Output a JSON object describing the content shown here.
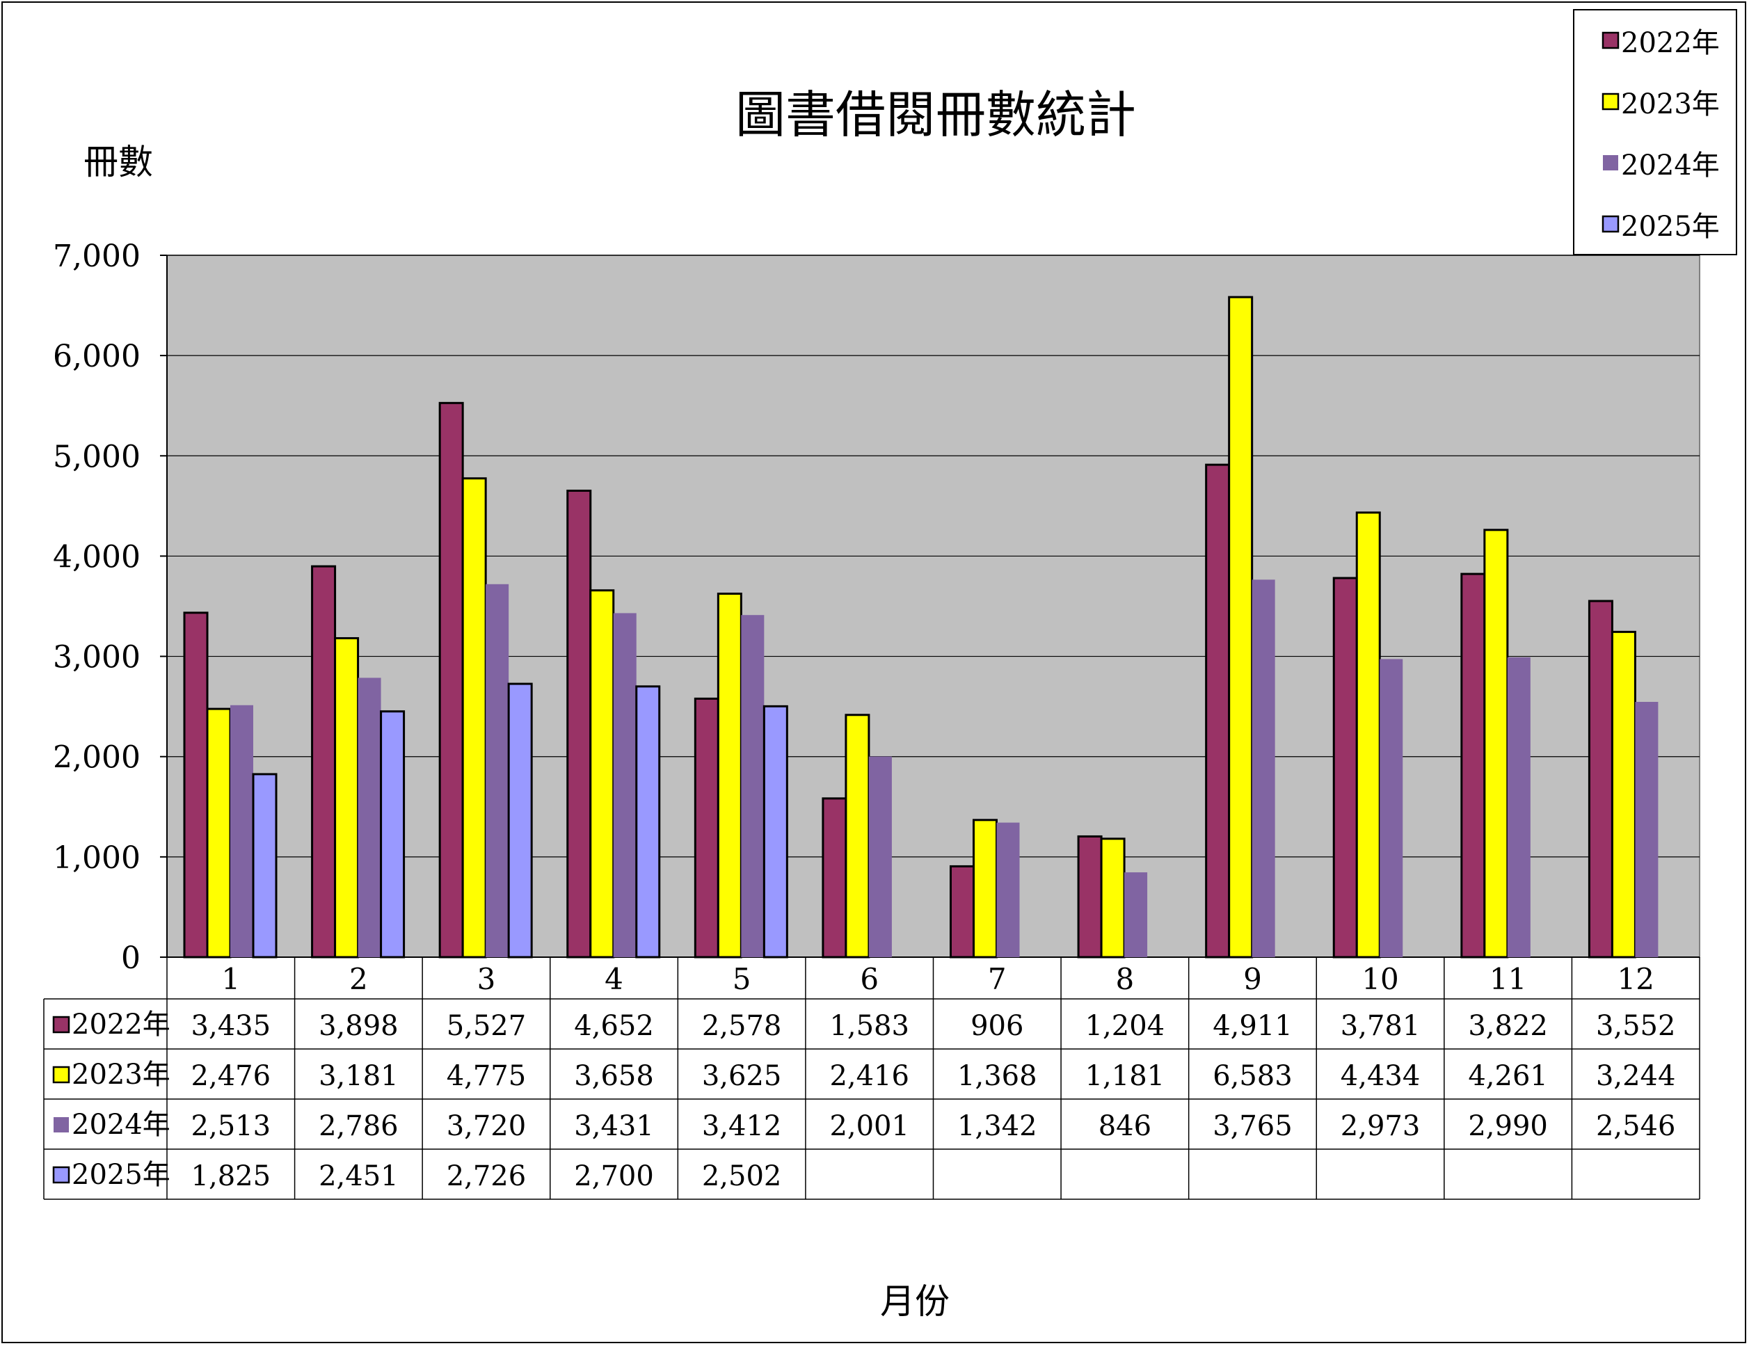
{
  "chart_data": {
    "type": "bar",
    "title": "圖書借閱冊數統計",
    "ylabel": "冊數",
    "xlabel": "月份",
    "ylim": [
      0,
      7000
    ],
    "yticks": [
      "0",
      "1,000",
      "2,000",
      "3,000",
      "4,000",
      "5,000",
      "6,000",
      "7,000"
    ],
    "grid": true,
    "legend_position": "top-right",
    "categories": [
      "1",
      "2",
      "3",
      "4",
      "5",
      "6",
      "7",
      "8",
      "9",
      "10",
      "11",
      "12"
    ],
    "series": [
      {
        "name": "2022年",
        "color": "#993366",
        "outlined": true,
        "values": [
          3435,
          3898,
          5527,
          4652,
          2578,
          1583,
          906,
          1204,
          4911,
          3781,
          3822,
          3552
        ],
        "labels": [
          "3,435",
          "3,898",
          "5,527",
          "4,652",
          "2,578",
          "1,583",
          "906",
          "1,204",
          "4,911",
          "3,781",
          "3,822",
          "3,552"
        ]
      },
      {
        "name": "2023年",
        "color": "#FFFF00",
        "outlined": true,
        "values": [
          2476,
          3181,
          4775,
          3658,
          3625,
          2416,
          1368,
          1181,
          6583,
          4434,
          4261,
          3244
        ],
        "labels": [
          "2,476",
          "3,181",
          "4,775",
          "3,658",
          "3,625",
          "2,416",
          "1,368",
          "1,181",
          "6,583",
          "4,434",
          "4,261",
          "3,244"
        ]
      },
      {
        "name": "2024年",
        "color": "#8064A2",
        "outlined": false,
        "values": [
          2513,
          2786,
          3720,
          3431,
          3412,
          2001,
          1342,
          846,
          3765,
          2973,
          2990,
          2546
        ],
        "labels": [
          "2,513",
          "2,786",
          "3,720",
          "3,431",
          "3,412",
          "2,001",
          "1,342",
          "846",
          "3,765",
          "2,973",
          "2,990",
          "2,546"
        ]
      },
      {
        "name": "2025年",
        "color": "#9999FF",
        "outlined": true,
        "values": [
          1825,
          2451,
          2726,
          2700,
          2502,
          null,
          null,
          null,
          null,
          null,
          null,
          null
        ],
        "labels": [
          "1,825",
          "2,451",
          "2,726",
          "2,700",
          "2,502",
          "",
          "",
          "",
          "",
          "",
          "",
          ""
        ]
      }
    ],
    "plot_background": "#C0C0C0"
  }
}
